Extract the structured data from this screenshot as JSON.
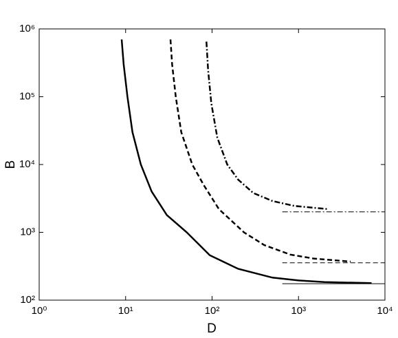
{
  "chart_data": {
    "type": "line",
    "xlabel": "D",
    "ylabel": "B",
    "xscale": "log",
    "yscale": "log",
    "xlim": [
      1,
      10000
    ],
    "ylim": [
      100,
      1000000
    ],
    "xticks": [
      {
        "value": 1,
        "label": "10⁰"
      },
      {
        "value": 10,
        "label": "10¹"
      },
      {
        "value": 100,
        "label": "10²"
      },
      {
        "value": 1000,
        "label": "10³"
      },
      {
        "value": 10000,
        "label": "10⁴"
      }
    ],
    "yticks": [
      {
        "value": 100,
        "label": "10²"
      },
      {
        "value": 1000,
        "label": "10³"
      },
      {
        "value": 10000,
        "label": "10⁴"
      },
      {
        "value": 100000,
        "label": "10⁵"
      },
      {
        "value": 1000000,
        "label": "10⁶"
      }
    ],
    "series": [
      {
        "color": "#000000",
        "style": "solid",
        "linewidth": 2.5,
        "x": [
          9,
          9.5,
          10.5,
          12,
          15,
          20,
          30,
          51,
          94,
          200,
          500,
          1000,
          2000,
          7000
        ],
        "values": [
          700000,
          300000,
          100000,
          30000,
          10000,
          4000,
          1800,
          1000,
          460,
          290,
          215,
          195,
          185,
          178
        ]
      },
      {
        "color": "#000000",
        "style": "dashed",
        "linewidth": 2.5,
        "x": [
          33,
          34.5,
          38,
          44,
          59,
          80,
          120,
          234,
          400,
          800,
          1500,
          4000
        ],
        "values": [
          700000,
          300000,
          100000,
          30000,
          10000,
          5000,
          2200,
          1000,
          650,
          470,
          410,
          370
        ]
      },
      {
        "color": "#000000",
        "style": "dashdot",
        "linewidth": 2.5,
        "x": [
          86,
          90,
          98,
          115,
          150,
          200,
          300,
          500,
          900,
          2200
        ],
        "values": [
          650000,
          250000,
          80000,
          25000,
          10000,
          6000,
          3800,
          2900,
          2450,
          2200
        ]
      },
      {
        "color": "#000000",
        "style": "solid",
        "linewidth": 1,
        "x": [
          650,
          10000
        ],
        "values": [
          175,
          175
        ]
      },
      {
        "color": "#000000",
        "style": "dashed",
        "linewidth": 1,
        "x": [
          650,
          10000
        ],
        "values": [
          355,
          355
        ]
      },
      {
        "color": "#000000",
        "style": "dashdot",
        "linewidth": 1,
        "x": [
          650,
          10000
        ],
        "values": [
          2000,
          2000
        ]
      }
    ]
  }
}
